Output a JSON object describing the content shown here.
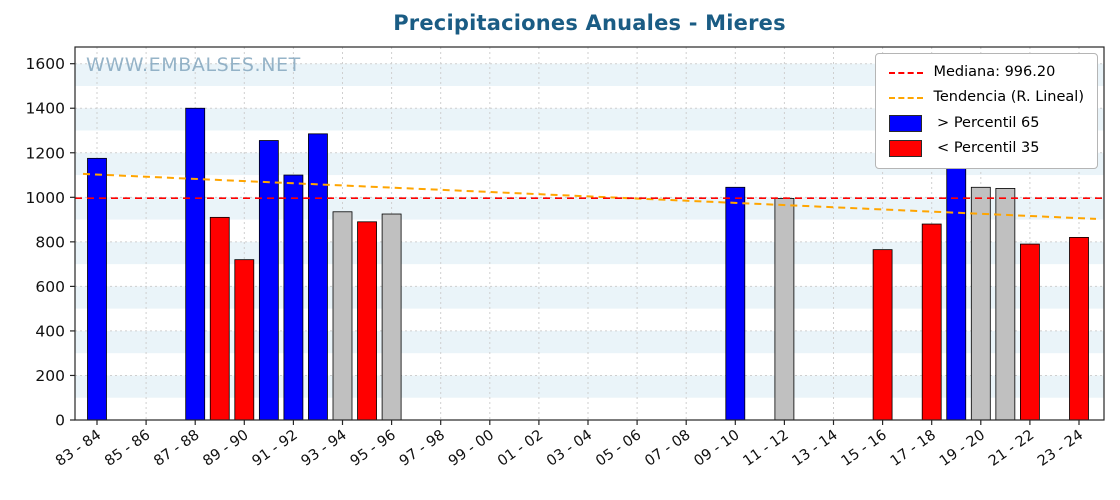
{
  "watermark": "WWW.EMBALSES.NET",
  "legend": {
    "items": [
      {
        "kind": "line",
        "color": "#ff0000",
        "label": "Mediana: 996.20"
      },
      {
        "kind": "line",
        "color": "#ffa500",
        "label": "Tendencia (R. Lineal)"
      },
      {
        "kind": "patch",
        "color": "#0000ff",
        "label": " > Percentil 65"
      },
      {
        "kind": "patch",
        "color": "#ff0000",
        "label": " < Percentil 35"
      }
    ]
  },
  "chart_data": {
    "type": "bar",
    "title": "Precipitaciones Anuales - Mieres",
    "xlabel": "",
    "ylabel": "",
    "ylim": [
      0,
      1675
    ],
    "yticks": [
      0,
      200,
      400,
      600,
      800,
      1000,
      1200,
      1400,
      1600
    ],
    "xtick_labels": [
      "83 - 84",
      "85 - 86",
      "87 - 88",
      "89 - 90",
      "91 - 92",
      "93 - 94",
      "95 - 96",
      "97 - 98",
      "99 - 00",
      "01 - 02",
      "03 - 04",
      "05 - 06",
      "07 - 08",
      "09 - 10",
      "11 - 12",
      "13 - 14",
      "15 - 16",
      "17 - 18",
      "19 - 20",
      "21 - 22",
      "23 - 24"
    ],
    "x_year_slots": 41,
    "bars": [
      {
        "season": "83 - 84",
        "slot": 0,
        "value": 1175,
        "category": "above65"
      },
      {
        "season": "87 - 88",
        "slot": 4,
        "value": 1400,
        "category": "above65"
      },
      {
        "season": "88 - 89",
        "slot": 5,
        "value": 910,
        "category": "below35"
      },
      {
        "season": "89 - 90",
        "slot": 6,
        "value": 720,
        "category": "below35"
      },
      {
        "season": "90 - 91",
        "slot": 7,
        "value": 1255,
        "category": "above65"
      },
      {
        "season": "91 - 92",
        "slot": 8,
        "value": 1100,
        "category": "above65"
      },
      {
        "season": "92 - 93",
        "slot": 9,
        "value": 1285,
        "category": "above65"
      },
      {
        "season": "93 - 94",
        "slot": 10,
        "value": 935,
        "category": "mid"
      },
      {
        "season": "94 - 95",
        "slot": 11,
        "value": 890,
        "category": "below35"
      },
      {
        "season": "95 - 96",
        "slot": 12,
        "value": 925,
        "category": "mid"
      },
      {
        "season": "09 - 10",
        "slot": 26,
        "value": 1045,
        "category": "above65"
      },
      {
        "season": "11 - 12",
        "slot": 28,
        "value": 995,
        "category": "mid"
      },
      {
        "season": "15 - 16",
        "slot": 32,
        "value": 765,
        "category": "below35"
      },
      {
        "season": "17 - 18",
        "slot": 34,
        "value": 880,
        "category": "below35"
      },
      {
        "season": "18 - 19",
        "slot": 35,
        "value": 1170,
        "category": "above65"
      },
      {
        "season": "19 - 20",
        "slot": 36,
        "value": 1045,
        "category": "mid"
      },
      {
        "season": "20 - 21",
        "slot": 37,
        "value": 1040,
        "category": "mid"
      },
      {
        "season": "21 - 22",
        "slot": 38,
        "value": 790,
        "category": "below35"
      },
      {
        "season": "23 - 24",
        "slot": 40,
        "value": 820,
        "category": "below35"
      }
    ],
    "median": {
      "value": 996.2,
      "label": "Mediana: 996.20"
    },
    "trend": {
      "label": "Tendencia (R. Lineal)",
      "start_value": 1105,
      "end_value": 903
    },
    "legend_position": "upper right",
    "grid": true,
    "colors": {
      "above65": "#0000ff",
      "below35": "#ff0000",
      "mid": "#c0c0c0",
      "median_line": "#ff0000",
      "trend_line": "#ffa500",
      "title": "#1a5c84",
      "watermark": "#84a7bf",
      "stripe": "#eaf4f9",
      "grid": "#cfcfcf",
      "frame": "#262626",
      "tick_text": "#111111"
    }
  }
}
